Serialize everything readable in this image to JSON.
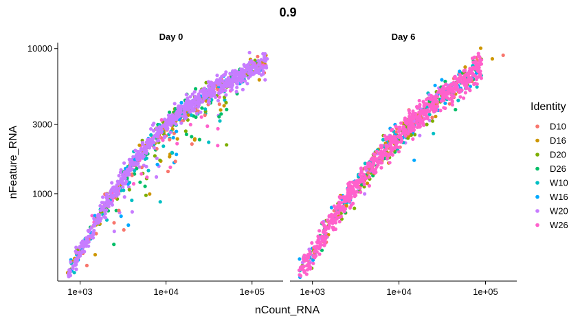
{
  "chart_data": {
    "type": "scatter",
    "title": "0.9",
    "xlabel": "nCount_RNA",
    "ylabel": "nFeature_RNA",
    "x_scale": "log10",
    "y_scale": "log10",
    "xlim": [
      550,
      230000
    ],
    "ylim": [
      250,
      11000
    ],
    "x_ticks": [
      1000,
      10000,
      100000
    ],
    "x_tick_labels": [
      "1e+03",
      "1e+04",
      "1e+05"
    ],
    "y_ticks": [
      1000,
      3000,
      10000
    ],
    "y_tick_labels": [
      "1000",
      "3000",
      "10000"
    ],
    "legend": {
      "title": "Identity",
      "placement": "right",
      "entries": [
        {
          "name": "D10",
          "color": "#F8766D"
        },
        {
          "name": "D16",
          "color": "#CD9600"
        },
        {
          "name": "D20",
          "color": "#7CAE00"
        },
        {
          "name": "D26",
          "color": "#00BE67"
        },
        {
          "name": "W10",
          "color": "#00BFC4"
        },
        {
          "name": "W16",
          "color": "#00A9FF"
        },
        {
          "name": "W20",
          "color": "#C77CFF"
        },
        {
          "name": "W26",
          "color": "#FF61CC"
        }
      ]
    },
    "panels": [
      {
        "label": "Day 0",
        "dominant_series": "W20",
        "trend": [
          [
            700,
            270
          ],
          [
            1000,
            400
          ],
          [
            2000,
            850
          ],
          [
            5000,
            1900
          ],
          [
            10000,
            3000
          ],
          [
            30000,
            5000
          ],
          [
            100000,
            7300
          ],
          [
            150000,
            8000
          ]
        ],
        "outliers": [
          [
            20000,
            2200
          ],
          [
            11000,
            1800
          ],
          [
            8500,
            1700
          ],
          [
            5000,
            1200
          ],
          [
            4000,
            900
          ],
          [
            3000,
            700
          ],
          [
            2500,
            550
          ],
          [
            6000,
            1300
          ],
          [
            1200,
            320
          ],
          [
            1500,
            380
          ]
        ]
      },
      {
        "label": "Day 6",
        "dominant_series": "W26",
        "trend": [
          [
            700,
            280
          ],
          [
            1000,
            380
          ],
          [
            2000,
            760
          ],
          [
            5000,
            1600
          ],
          [
            10000,
            2600
          ],
          [
            30000,
            4600
          ],
          [
            60000,
            6200
          ],
          [
            90000,
            7600
          ]
        ],
        "outliers": [
          [
            160000,
            9000
          ],
          [
            120000,
            8500
          ],
          [
            85000,
            7000
          ],
          [
            45000,
            3800
          ],
          [
            25000,
            2600
          ],
          [
            15000,
            1700
          ]
        ]
      }
    ]
  }
}
